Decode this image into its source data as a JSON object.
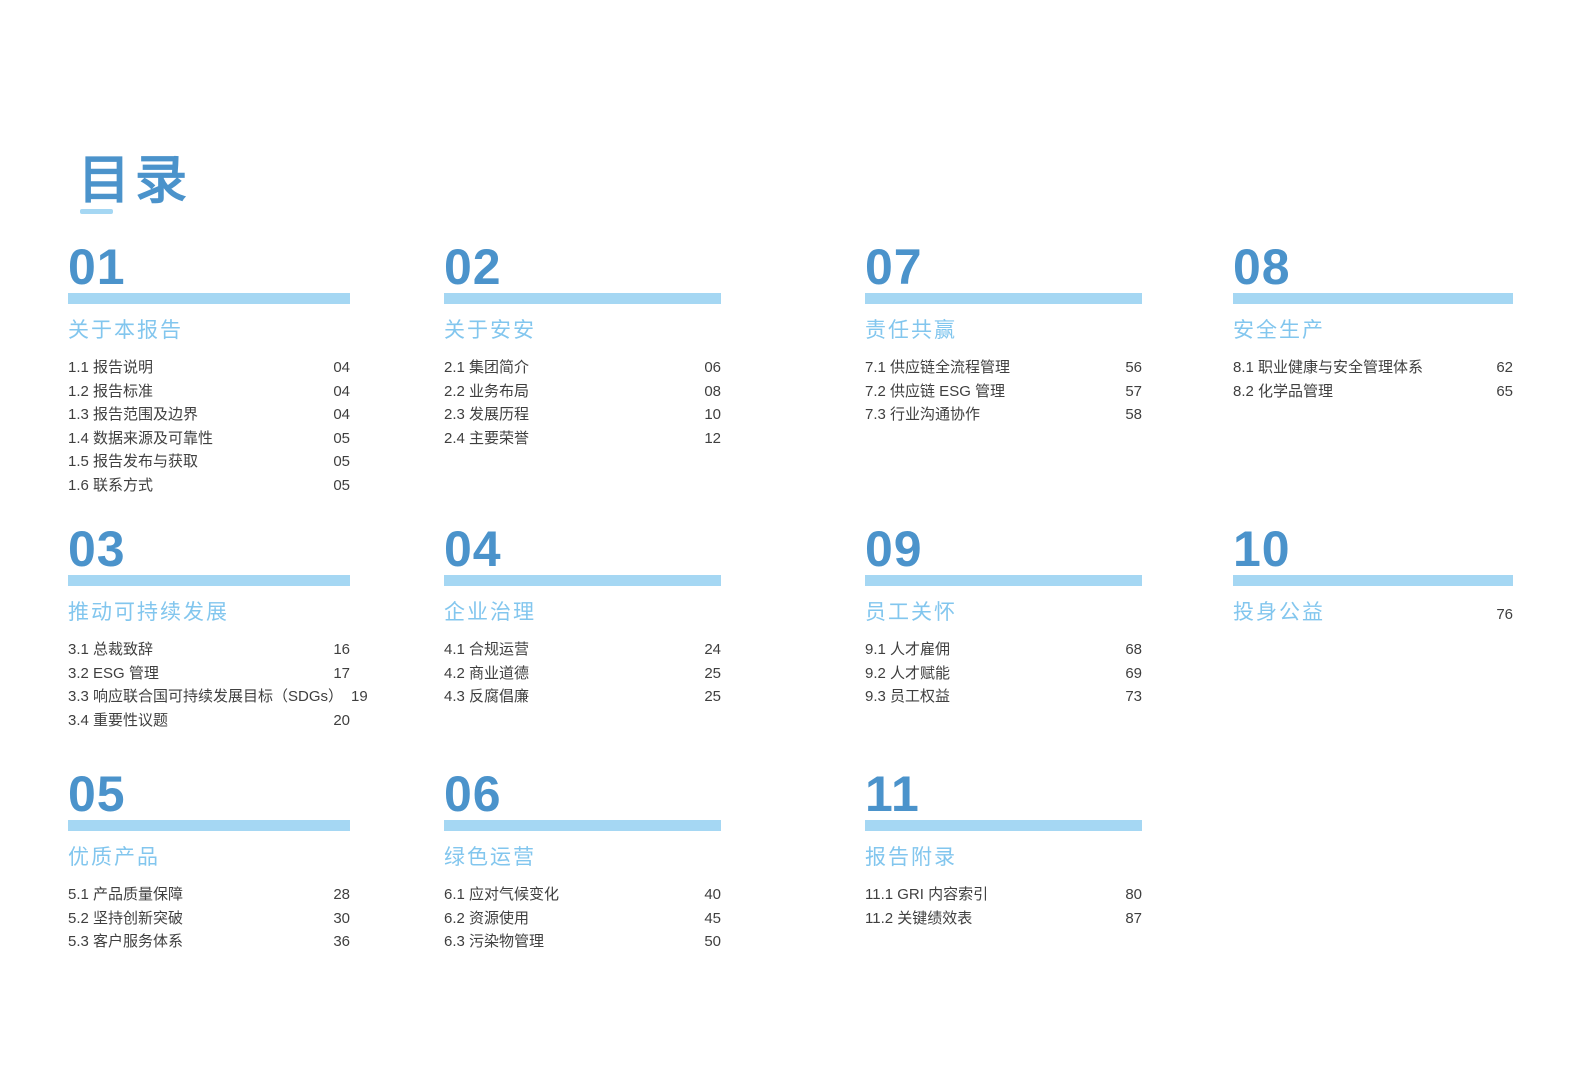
{
  "page": {
    "title": "目录",
    "accent_color": "#4b93cb",
    "bar_color": "#a5d7f3",
    "section_title_color": "#82c6ee",
    "text_color": "#3f3f3f"
  },
  "sections": [
    {
      "num": "01",
      "title": "关于本报告",
      "items": [
        {
          "label": "1.1 报告说明",
          "page": "04"
        },
        {
          "label": "1.2 报告标准",
          "page": "04"
        },
        {
          "label": "1.3 报告范围及边界",
          "page": "04"
        },
        {
          "label": "1.4 数据来源及可靠性",
          "page": "05"
        },
        {
          "label": "1.5 报告发布与获取",
          "page": "05"
        },
        {
          "label": "1.6 联系方式",
          "page": "05"
        }
      ]
    },
    {
      "num": "02",
      "title": "关于安安",
      "items": [
        {
          "label": "2.1 集团简介",
          "page": "06"
        },
        {
          "label": "2.2 业务布局",
          "page": "08"
        },
        {
          "label": "2.3 发展历程",
          "page": "10"
        },
        {
          "label": "2.4 主要荣誉",
          "page": "12"
        }
      ]
    },
    {
      "num": "07",
      "title": "责任共赢",
      "items": [
        {
          "label": "7.1 供应链全流程管理",
          "page": "56"
        },
        {
          "label": "7.2 供应链 ESG 管理",
          "page": "57"
        },
        {
          "label": "7.3 行业沟通协作",
          "page": "58"
        }
      ]
    },
    {
      "num": "08",
      "title": "安全生产",
      "items": [
        {
          "label": "8.1 职业健康与安全管理体系",
          "page": "62"
        },
        {
          "label": "8.2 化学品管理",
          "page": "65"
        }
      ]
    },
    {
      "num": "03",
      "title": "推动可持续发展",
      "items": [
        {
          "label": "3.1 总裁致辞",
          "page": "16"
        },
        {
          "label": "3.2 ESG 管理",
          "page": "17"
        },
        {
          "label": "3.3 响应联合国可持续发展目标（SDGs）",
          "page": "19"
        },
        {
          "label": "3.4 重要性议题",
          "page": "20"
        }
      ]
    },
    {
      "num": "04",
      "title": "企业治理",
      "items": [
        {
          "label": "4.1 合规运营",
          "page": "24"
        },
        {
          "label": "4.2 商业道德",
          "page": "25"
        },
        {
          "label": "4.3 反腐倡廉",
          "page": "25"
        }
      ]
    },
    {
      "num": "09",
      "title": "员工关怀",
      "items": [
        {
          "label": "9.1 人才雇佣",
          "page": "68"
        },
        {
          "label": "9.2 人才赋能",
          "page": "69"
        },
        {
          "label": "9.3 员工权益",
          "page": "73"
        }
      ]
    },
    {
      "num": "10",
      "title": "投身公益",
      "page": "76",
      "items": []
    },
    {
      "num": "05",
      "title": "优质产品",
      "items": [
        {
          "label": "5.1 产品质量保障",
          "page": "28"
        },
        {
          "label": "5.2 坚持创新突破",
          "page": "30"
        },
        {
          "label": "5.3 客户服务体系",
          "page": "36"
        }
      ]
    },
    {
      "num": "06",
      "title": "绿色运营",
      "items": [
        {
          "label": "6.1 应对气候变化",
          "page": "40"
        },
        {
          "label": "6.2 资源使用",
          "page": "45"
        },
        {
          "label": "6.3 污染物管理",
          "page": "50"
        }
      ]
    },
    {
      "num": "11",
      "title": "报告附录",
      "items": [
        {
          "label": "11.1 GRI 内容索引",
          "page": "80"
        },
        {
          "label": "11.2 关键绩效表",
          "page": "87"
        }
      ]
    }
  ]
}
